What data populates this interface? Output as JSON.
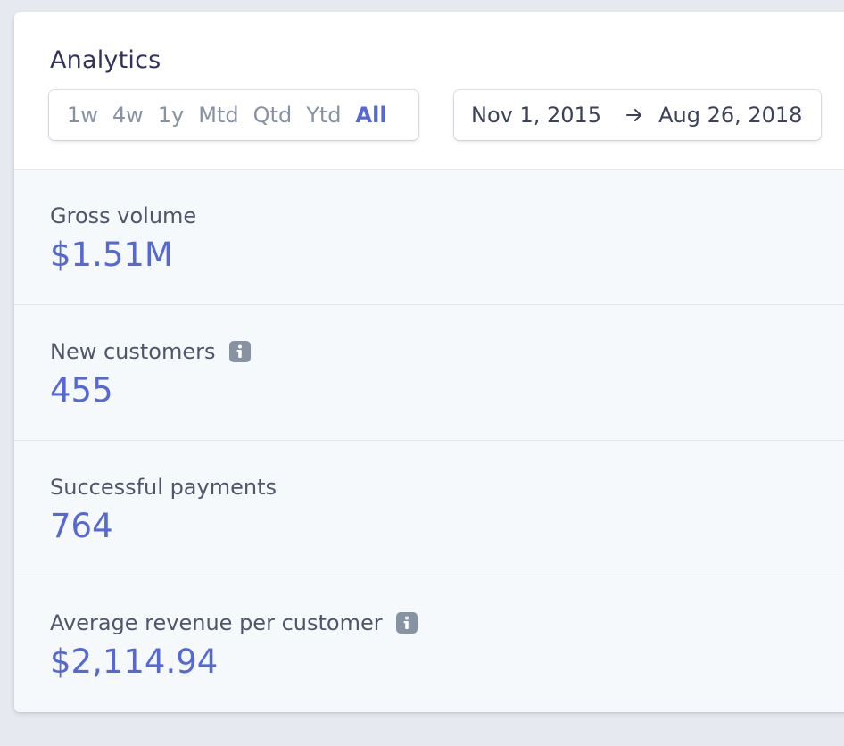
{
  "header": {
    "title": "Analytics",
    "range_tabs": [
      {
        "label": "1w",
        "active": false
      },
      {
        "label": "4w",
        "active": false
      },
      {
        "label": "1y",
        "active": false
      },
      {
        "label": "Mtd",
        "active": false
      },
      {
        "label": "Qtd",
        "active": false
      },
      {
        "label": "Ytd",
        "active": false
      },
      {
        "label": "All",
        "active": true
      }
    ],
    "date_range": {
      "start": "Nov 1, 2015",
      "end": "Aug 26, 2018",
      "separator_icon": "arrow-right-icon"
    }
  },
  "metrics": [
    {
      "label": "Gross volume",
      "value": "$1.51M",
      "has_info": false
    },
    {
      "label": "New customers",
      "value": "455",
      "has_info": true
    },
    {
      "label": "Successful payments",
      "value": "764",
      "has_info": false
    },
    {
      "label": "Average revenue per customer",
      "value": "$2,114.94",
      "has_info": true
    }
  ],
  "colors": {
    "accent": "#5469d4",
    "title": "#32325d",
    "label": "#4f566b",
    "muted": "#8792a2",
    "panel_bg": "#f6f9fc",
    "page_bg": "#e6e9ef"
  }
}
